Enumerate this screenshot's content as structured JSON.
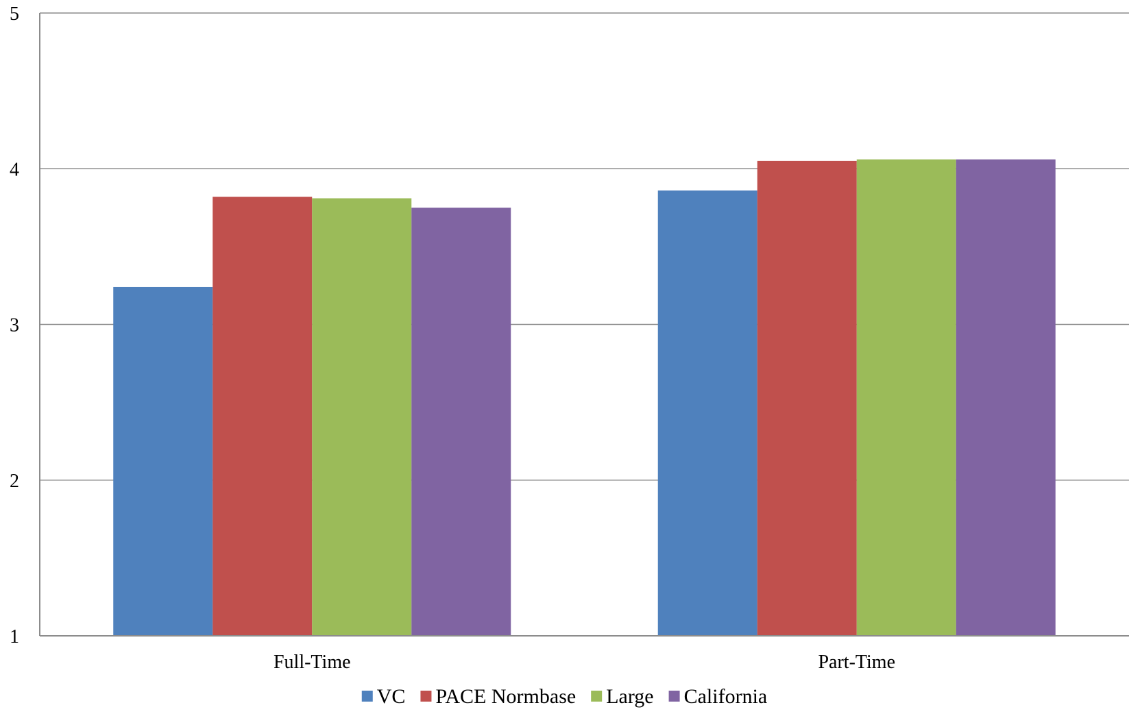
{
  "chart_data": {
    "type": "bar",
    "title": "",
    "xlabel": "",
    "ylabel": "",
    "categories": [
      "Full-Time",
      "Part-Time"
    ],
    "ylim": [
      1,
      5
    ],
    "yticks": [
      "1",
      "2",
      "3",
      "4",
      "5"
    ],
    "grid": true,
    "legend_position": "bottom",
    "series": [
      {
        "name": "VC",
        "color": "#4F81BD",
        "values": [
          3.24,
          3.86
        ]
      },
      {
        "name": "PACE Normbase",
        "color": "#C0504D",
        "values": [
          3.82,
          4.05
        ]
      },
      {
        "name": "Large",
        "color": "#9BBB59",
        "values": [
          3.81,
          4.06
        ]
      },
      {
        "name": "California",
        "color": "#8064A2",
        "values": [
          3.75,
          4.06
        ]
      }
    ]
  }
}
